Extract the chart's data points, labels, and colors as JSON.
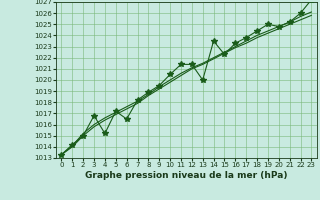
{
  "x": [
    0,
    1,
    2,
    3,
    4,
    5,
    6,
    7,
    8,
    9,
    10,
    11,
    12,
    13,
    14,
    15,
    16,
    17,
    18,
    19,
    20,
    21,
    22,
    23
  ],
  "y_main": [
    1013.3,
    1014.2,
    1015.0,
    1016.8,
    1015.2,
    1017.2,
    1016.5,
    1018.2,
    1018.9,
    1019.5,
    1020.5,
    1021.4,
    1021.4,
    1020.0,
    1023.5,
    1022.3,
    1023.3,
    1023.8,
    1024.4,
    1025.0,
    1024.8,
    1025.2,
    1026.0,
    1027.2
  ],
  "y_smooth1": [
    1013.3,
    1014.0,
    1015.0,
    1015.8,
    1016.4,
    1016.9,
    1017.4,
    1017.9,
    1018.6,
    1019.2,
    1019.8,
    1020.4,
    1021.0,
    1021.4,
    1021.9,
    1022.4,
    1022.9,
    1023.3,
    1023.8,
    1024.2,
    1024.6,
    1025.0,
    1025.4,
    1025.8
  ],
  "y_smooth2": [
    1013.3,
    1014.1,
    1015.2,
    1016.0,
    1016.6,
    1017.1,
    1017.6,
    1018.1,
    1018.7,
    1019.4,
    1020.0,
    1020.6,
    1021.1,
    1021.5,
    1022.0,
    1022.5,
    1023.0,
    1023.5,
    1024.0,
    1024.4,
    1024.8,
    1025.2,
    1025.7,
    1026.1
  ],
  "line_color": "#1a5c1a",
  "bg_color": "#c8eae0",
  "grid_color": "#7ab87a",
  "text_color": "#1a3a1a",
  "ylim": [
    1013,
    1027
  ],
  "xlim": [
    -0.5,
    23.5
  ],
  "xlabel": "Graphe pression niveau de la mer (hPa)",
  "yticks": [
    1013,
    1014,
    1015,
    1016,
    1017,
    1018,
    1019,
    1020,
    1021,
    1022,
    1023,
    1024,
    1025,
    1026,
    1027
  ],
  "xticks": [
    0,
    1,
    2,
    3,
    4,
    5,
    6,
    7,
    8,
    9,
    10,
    11,
    12,
    13,
    14,
    15,
    16,
    17,
    18,
    19,
    20,
    21,
    22,
    23
  ],
  "marker": "*",
  "marker_size": 4,
  "linewidth": 0.8,
  "tick_fontsize": 5,
  "xlabel_fontsize": 6.5
}
